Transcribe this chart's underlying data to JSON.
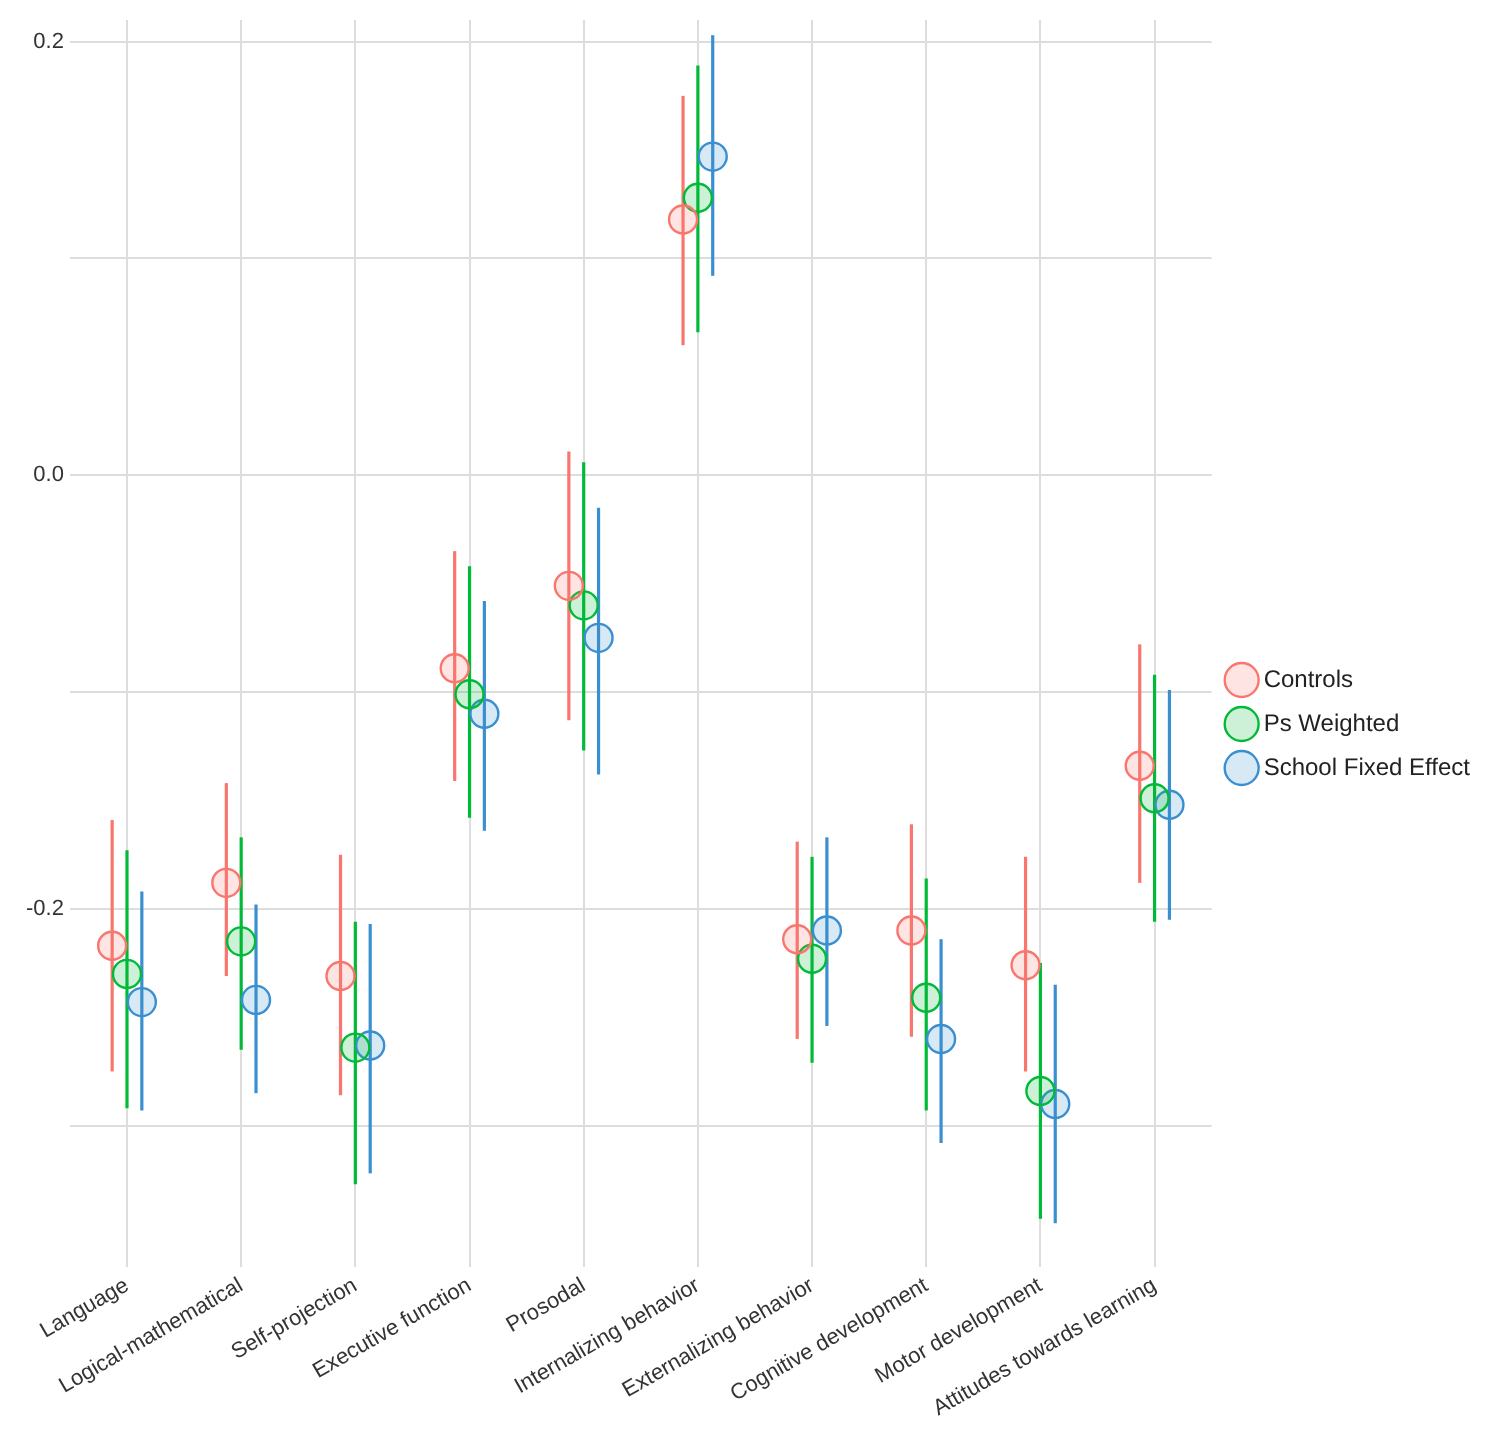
{
  "chart_data": {
    "type": "scatter",
    "categories": [
      "Language",
      "Logical-mathematical",
      "Self-projection",
      "Executive function",
      "Prosodal",
      "Internalizing behavior",
      "Externalizing behavior",
      "Cognitive development",
      "Motor development",
      "Attitudes towards learning"
    ],
    "series": [
      {
        "name": "Controls",
        "color": "#f8766d",
        "values": [
          -0.217,
          -0.188,
          -0.231,
          -0.089,
          -0.051,
          0.118,
          -0.214,
          -0.21,
          -0.226,
          -0.134
        ],
        "errors": [
          [
            -0.275,
            -0.159
          ],
          [
            -0.231,
            -0.142
          ],
          [
            -0.286,
            -0.175
          ],
          [
            -0.141,
            -0.035
          ],
          [
            -0.113,
            0.011
          ],
          [
            0.06,
            0.175
          ],
          [
            -0.26,
            -0.169
          ],
          [
            -0.259,
            -0.161
          ],
          [
            -0.275,
            -0.176
          ],
          [
            -0.188,
            -0.078
          ]
        ]
      },
      {
        "name": "Ps Weighted",
        "color": "#00ba38",
        "values": [
          -0.23,
          -0.215,
          -0.264,
          -0.101,
          -0.06,
          0.128,
          -0.223,
          -0.241,
          -0.284,
          -0.149
        ],
        "errors": [
          [
            -0.292,
            -0.173
          ],
          [
            -0.265,
            -0.167
          ],
          [
            -0.327,
            -0.206
          ],
          [
            -0.158,
            -0.042
          ],
          [
            -0.127,
            0.006
          ],
          [
            0.066,
            0.189
          ],
          [
            -0.271,
            -0.176
          ],
          [
            -0.293,
            -0.186
          ],
          [
            -0.343,
            -0.225
          ],
          [
            -0.206,
            -0.092
          ]
        ]
      },
      {
        "name": "School Fixed Effect",
        "color": "#3a8fd0",
        "values": [
          -0.243,
          -0.242,
          -0.263,
          -0.11,
          -0.075,
          0.147,
          -0.21,
          -0.26,
          -0.29,
          -0.152
        ],
        "errors": [
          [
            -0.293,
            -0.192
          ],
          [
            -0.285,
            -0.198
          ],
          [
            -0.322,
            -0.207
          ],
          [
            -0.164,
            -0.058
          ],
          [
            -0.138,
            -0.015
          ],
          [
            0.092,
            0.203
          ],
          [
            -0.254,
            -0.167
          ],
          [
            -0.308,
            -0.214
          ],
          [
            -0.345,
            -0.235
          ],
          [
            -0.205,
            -0.099
          ]
        ]
      }
    ],
    "ylim": [
      -0.365,
      0.21
    ],
    "yticks": [
      {
        "value": -0.3,
        "label": null
      },
      {
        "value": -0.2,
        "label": "-0.2"
      },
      {
        "value": -0.1,
        "label": null
      },
      {
        "value": 0,
        "label": "0.0"
      },
      {
        "value": 0.1,
        "label": null
      },
      {
        "value": 0.2,
        "label": "0.2"
      }
    ],
    "grid": true,
    "legend": "right",
    "marker": "circle"
  }
}
